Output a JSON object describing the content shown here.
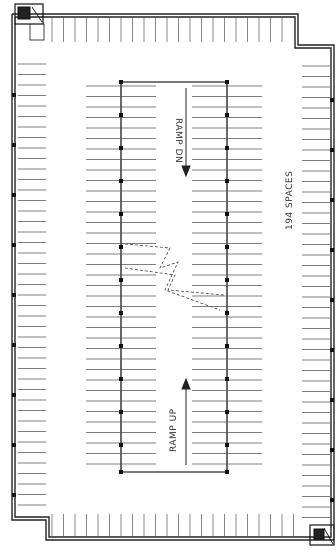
{
  "labels": {
    "ramp_down": "RAMP DN",
    "ramp_up": "RAMP UP",
    "spaces": "194 SPACES"
  },
  "colors": {
    "line": "#222222",
    "stall": "#555555",
    "column": "#111111"
  },
  "icons": {
    "corner_stair": "stair-core-icon",
    "corner_elevator": "elevator-core-icon"
  }
}
